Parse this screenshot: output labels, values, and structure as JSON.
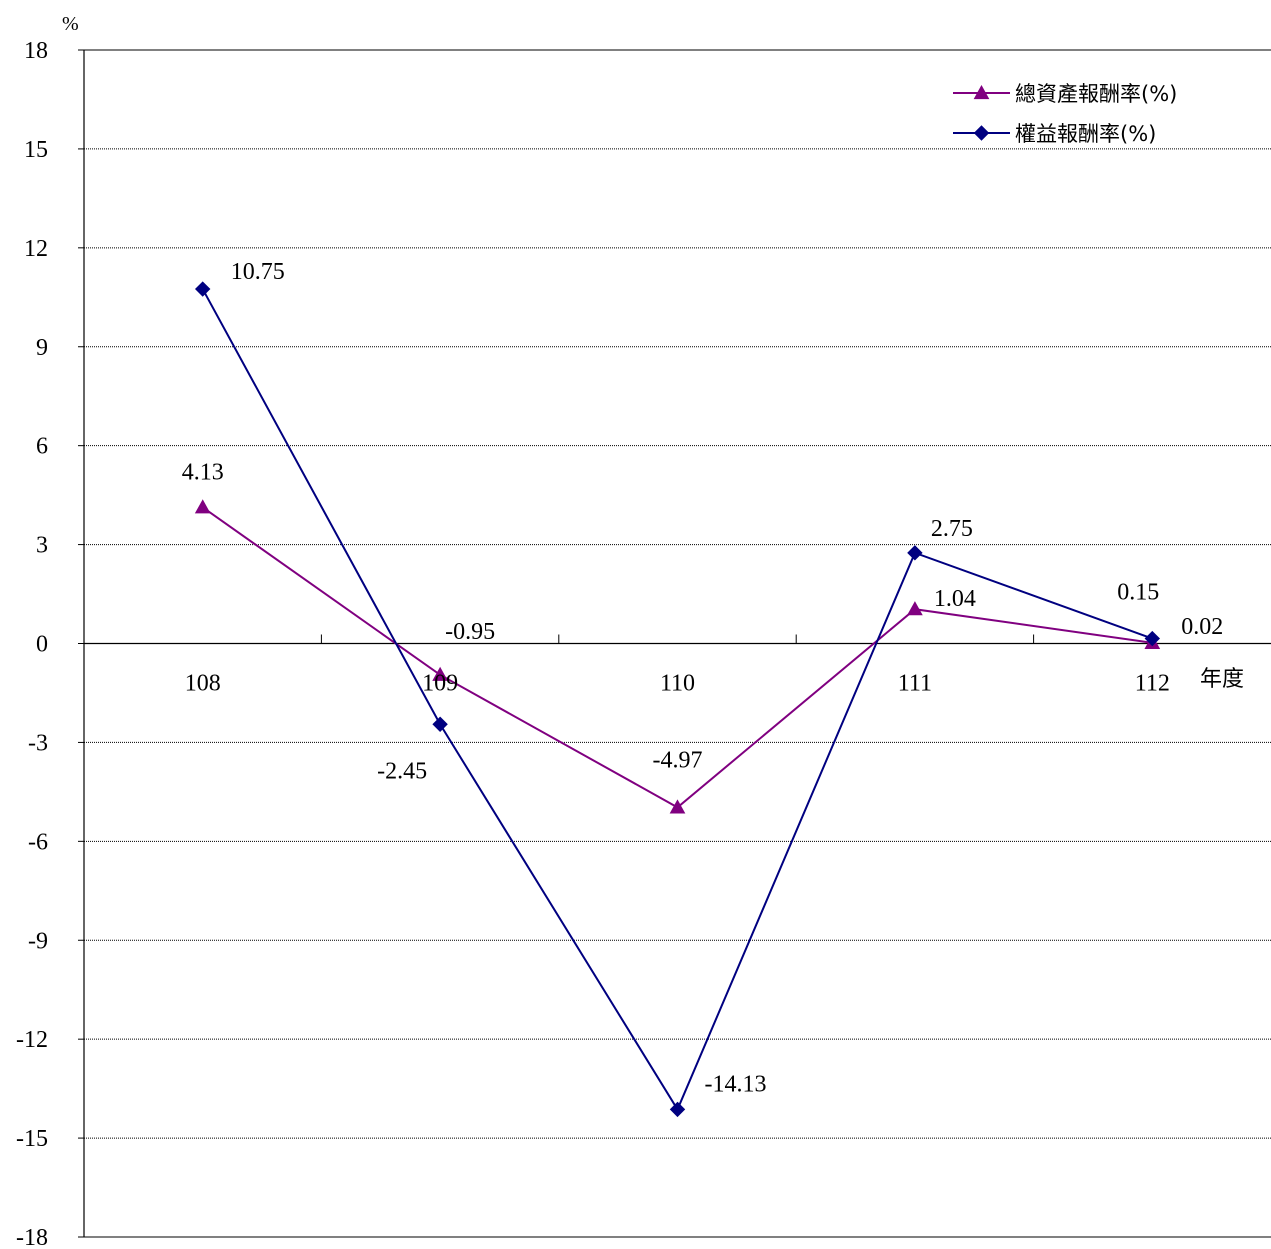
{
  "chart_data": {
    "type": "line",
    "y_unit": "%",
    "x_unit": "年度",
    "categories": [
      "108",
      "109",
      "110",
      "111",
      "112"
    ],
    "ylim": [
      -18,
      18
    ],
    "yticks": [
      18,
      15,
      12,
      9,
      6,
      3,
      0,
      -3,
      -6,
      -9,
      -12,
      -15,
      -18
    ],
    "grid": true,
    "legend_position": "top-right",
    "series": [
      {
        "name": "總資產報酬率(%)",
        "color": "#800080",
        "marker": "triangle",
        "values": [
          4.13,
          -0.95,
          -4.97,
          1.04,
          0.02
        ],
        "labels": [
          "4.13",
          "-0.95",
          "-4.97",
          "1.04",
          "0.02"
        ]
      },
      {
        "name": "權益報酬率(%)",
        "color": "#000080",
        "marker": "diamond",
        "values": [
          10.75,
          -2.45,
          -14.13,
          2.75,
          0.15
        ],
        "labels": [
          "10.75",
          "-2.45",
          "-14.13",
          "2.75",
          "0.15"
        ]
      }
    ]
  }
}
